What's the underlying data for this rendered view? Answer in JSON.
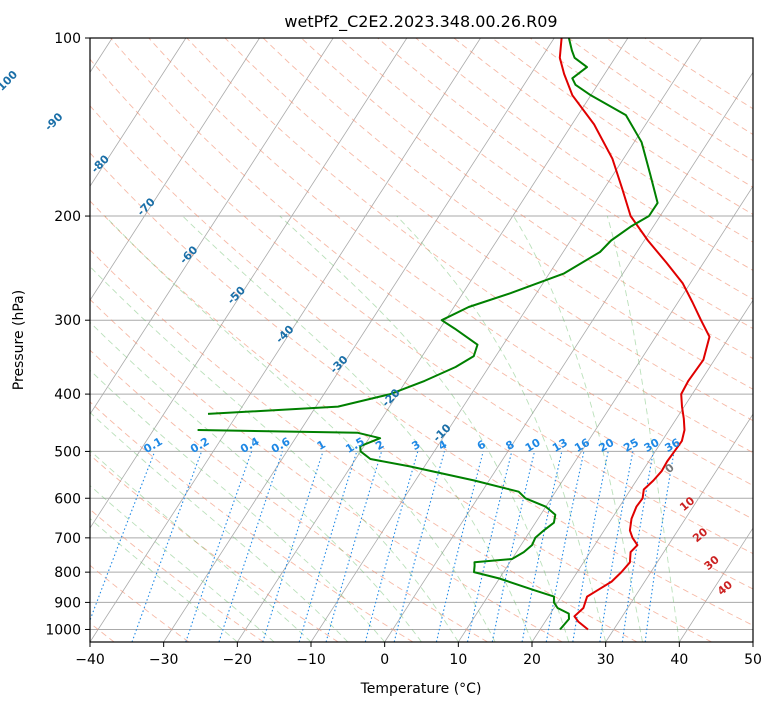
{
  "chart_data": {
    "type": "skew-t",
    "title": "wetPf2_C2E2.2023.348.00.26.R09",
    "xlabel": "Temperature (°C)",
    "ylabel": "Pressure (hPa)",
    "xlim": [
      -40,
      50
    ],
    "ylim": [
      1050,
      100
    ],
    "x_ticks": [
      -40,
      -30,
      -20,
      -10,
      0,
      10,
      20,
      30,
      40,
      50
    ],
    "x_tick_labels": [
      "−40",
      "−30",
      "−20",
      "−10",
      "0",
      "10",
      "20",
      "30",
      "40",
      "50"
    ],
    "y_ticks": [
      100,
      200,
      300,
      400,
      500,
      600,
      700,
      800,
      900,
      1000
    ],
    "y_tick_labels": [
      "100",
      "200",
      "300",
      "400",
      "500",
      "600",
      "700",
      "800",
      "900",
      "1000"
    ],
    "grid": true,
    "colors": {
      "temperature": "#e00000",
      "dewpoint": "#008000",
      "isotherm_grid": "#aaaaaa",
      "dry_adiabat": "#f08a6a",
      "moist_adiabat": "#66bb66",
      "mixing_ratio": "#1e88e5",
      "isotherm_label": "#1a6fa8",
      "moist_label": "#cc2222"
    },
    "temperature_label_values": [
      "-100",
      "-90",
      "-80",
      "-70",
      "-60",
      "-50",
      "-40",
      "-30",
      "-20",
      "-10"
    ],
    "moist_adiabat_labels": [
      "0",
      "10",
      "20",
      "30",
      "40"
    ],
    "mixing_ratio_labels": [
      "0.1",
      "0.2",
      "0.4",
      "0.6",
      "1",
      "1.5",
      "2",
      "3",
      "4",
      "6",
      "8",
      "10",
      "13",
      "16",
      "20",
      "25",
      "30",
      "36"
    ],
    "series": [
      {
        "name": "Temperature",
        "points": [
          [
            26.5,
            1000
          ],
          [
            24.5,
            970
          ],
          [
            23.5,
            950
          ],
          [
            24,
            920
          ],
          [
            23.5,
            880
          ],
          [
            24.3,
            860
          ],
          [
            25.5,
            830
          ],
          [
            26,
            800
          ],
          [
            26.3,
            770
          ],
          [
            25.5,
            740
          ],
          [
            25.8,
            720
          ],
          [
            24.5,
            700
          ],
          [
            23.5,
            680
          ],
          [
            22.7,
            650
          ],
          [
            22.3,
            620
          ],
          [
            22.4,
            600
          ],
          [
            21.8,
            580
          ],
          [
            22.3,
            560
          ],
          [
            22.6,
            540
          ],
          [
            22.5,
            520
          ],
          [
            22.6,
            500
          ],
          [
            22.7,
            480
          ],
          [
            22.1,
            460
          ],
          [
            21,
            440
          ],
          [
            19.7,
            420
          ],
          [
            18.5,
            400
          ],
          [
            18.3,
            380
          ],
          [
            18.5,
            350
          ],
          [
            17.3,
            320
          ],
          [
            14.7,
            300
          ],
          [
            12,
            280
          ],
          [
            9,
            260
          ],
          [
            5,
            240
          ],
          [
            0.5,
            220
          ],
          [
            -4,
            200
          ],
          [
            -7.5,
            180
          ],
          [
            -11.5,
            160
          ],
          [
            -17,
            140
          ],
          [
            -22.5,
            125
          ],
          [
            -25.5,
            115
          ],
          [
            -27.5,
            108
          ],
          [
            -29,
            100
          ]
        ]
      },
      {
        "name": "Dewpoint",
        "points": [
          [
            22.7,
            1000
          ],
          [
            23,
            960
          ],
          [
            22.5,
            940
          ],
          [
            20.5,
            920
          ],
          [
            19.5,
            900
          ],
          [
            19,
            880
          ],
          [
            16,
            860
          ],
          [
            10,
            820
          ],
          [
            6,
            800
          ],
          [
            5.5,
            780
          ],
          [
            5.2,
            770
          ],
          [
            10,
            760
          ],
          [
            11,
            740
          ],
          [
            11.5,
            720
          ],
          [
            11.3,
            700
          ],
          [
            11.8,
            680
          ],
          [
            12.5,
            660
          ],
          [
            12,
            640
          ],
          [
            10,
            620
          ],
          [
            6.5,
            600
          ],
          [
            5,
            585
          ],
          [
            -2,
            560
          ],
          [
            -12,
            530
          ],
          [
            -18,
            515
          ],
          [
            -20,
            500
          ],
          [
            -20.5,
            490
          ],
          [
            -18.5,
            475
          ],
          [
            -22,
            465
          ],
          [
            -44,
            460
          ]
        ]
      },
      {
        "name": "Dewpoint upper",
        "points": [
          [
            -44,
            432
          ],
          [
            -27,
            420
          ],
          [
            -21,
            400
          ],
          [
            -17.5,
            380
          ],
          [
            -14.5,
            360
          ],
          [
            -13,
            345
          ],
          [
            -13.5,
            330
          ],
          [
            -18,
            310
          ],
          [
            -20.5,
            300
          ],
          [
            -18,
            285
          ],
          [
            -13.5,
            270
          ],
          [
            -8,
            250
          ],
          [
            -5,
            230
          ],
          [
            -4.5,
            220
          ],
          [
            -3,
            208
          ],
          [
            -1.5,
            200
          ],
          [
            -1.5,
            190
          ],
          [
            -5,
            170
          ],
          [
            -9,
            150
          ],
          [
            -13.5,
            135
          ],
          [
            -20,
            125
          ],
          [
            -23,
            120
          ],
          [
            -24,
            117
          ],
          [
            -23,
            112
          ],
          [
            -25.5,
            108
          ],
          [
            -26.5,
            105
          ],
          [
            -28,
            100
          ]
        ]
      }
    ]
  }
}
